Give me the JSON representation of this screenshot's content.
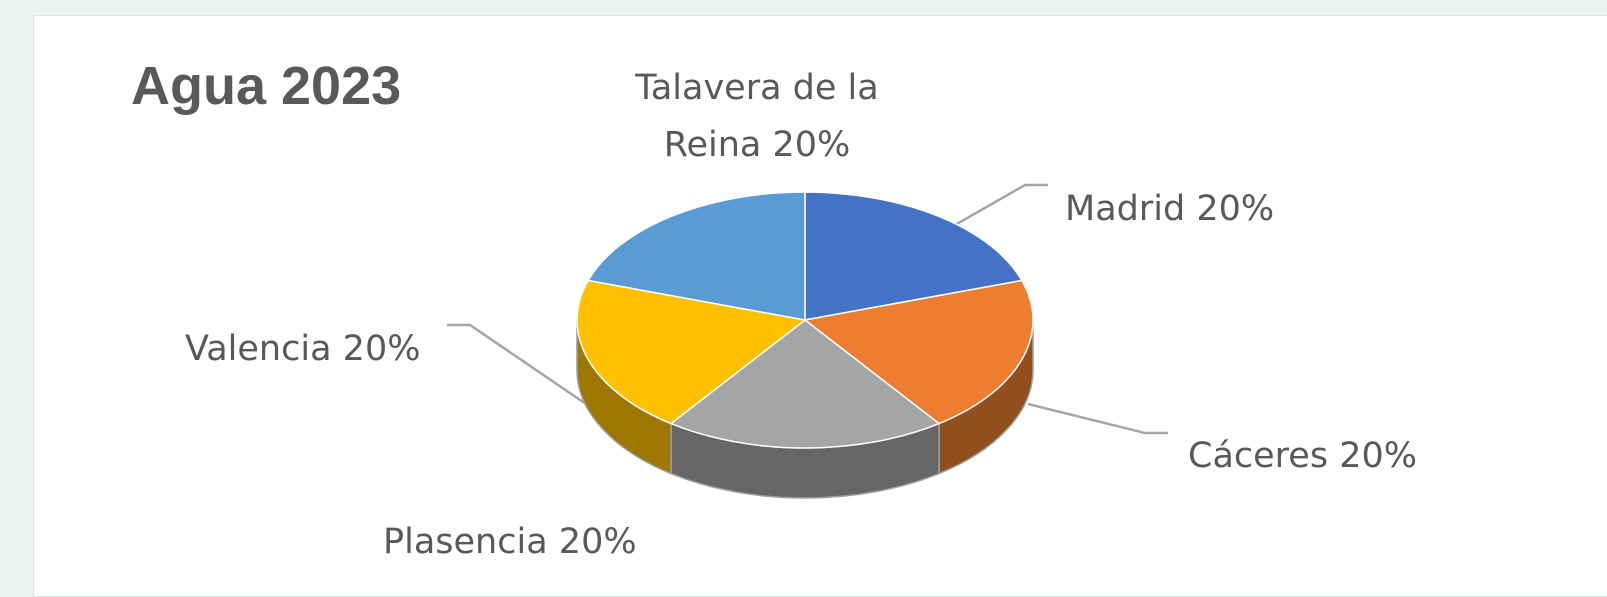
{
  "chart_data": {
    "type": "pie",
    "title": "Agua 2023",
    "categories": [
      "Madrid",
      "Cáceres",
      "Plasencia",
      "Valencia",
      "Talavera de la Reina"
    ],
    "values": [
      20,
      20,
      20,
      20,
      20
    ],
    "value_labels": [
      "20%",
      "20%",
      "20%",
      "20%",
      "20%"
    ],
    "colors": [
      "#4472c4",
      "#ed7d31",
      "#a5a5a5",
      "#ffc000",
      "#5b9bd5"
    ]
  }
}
